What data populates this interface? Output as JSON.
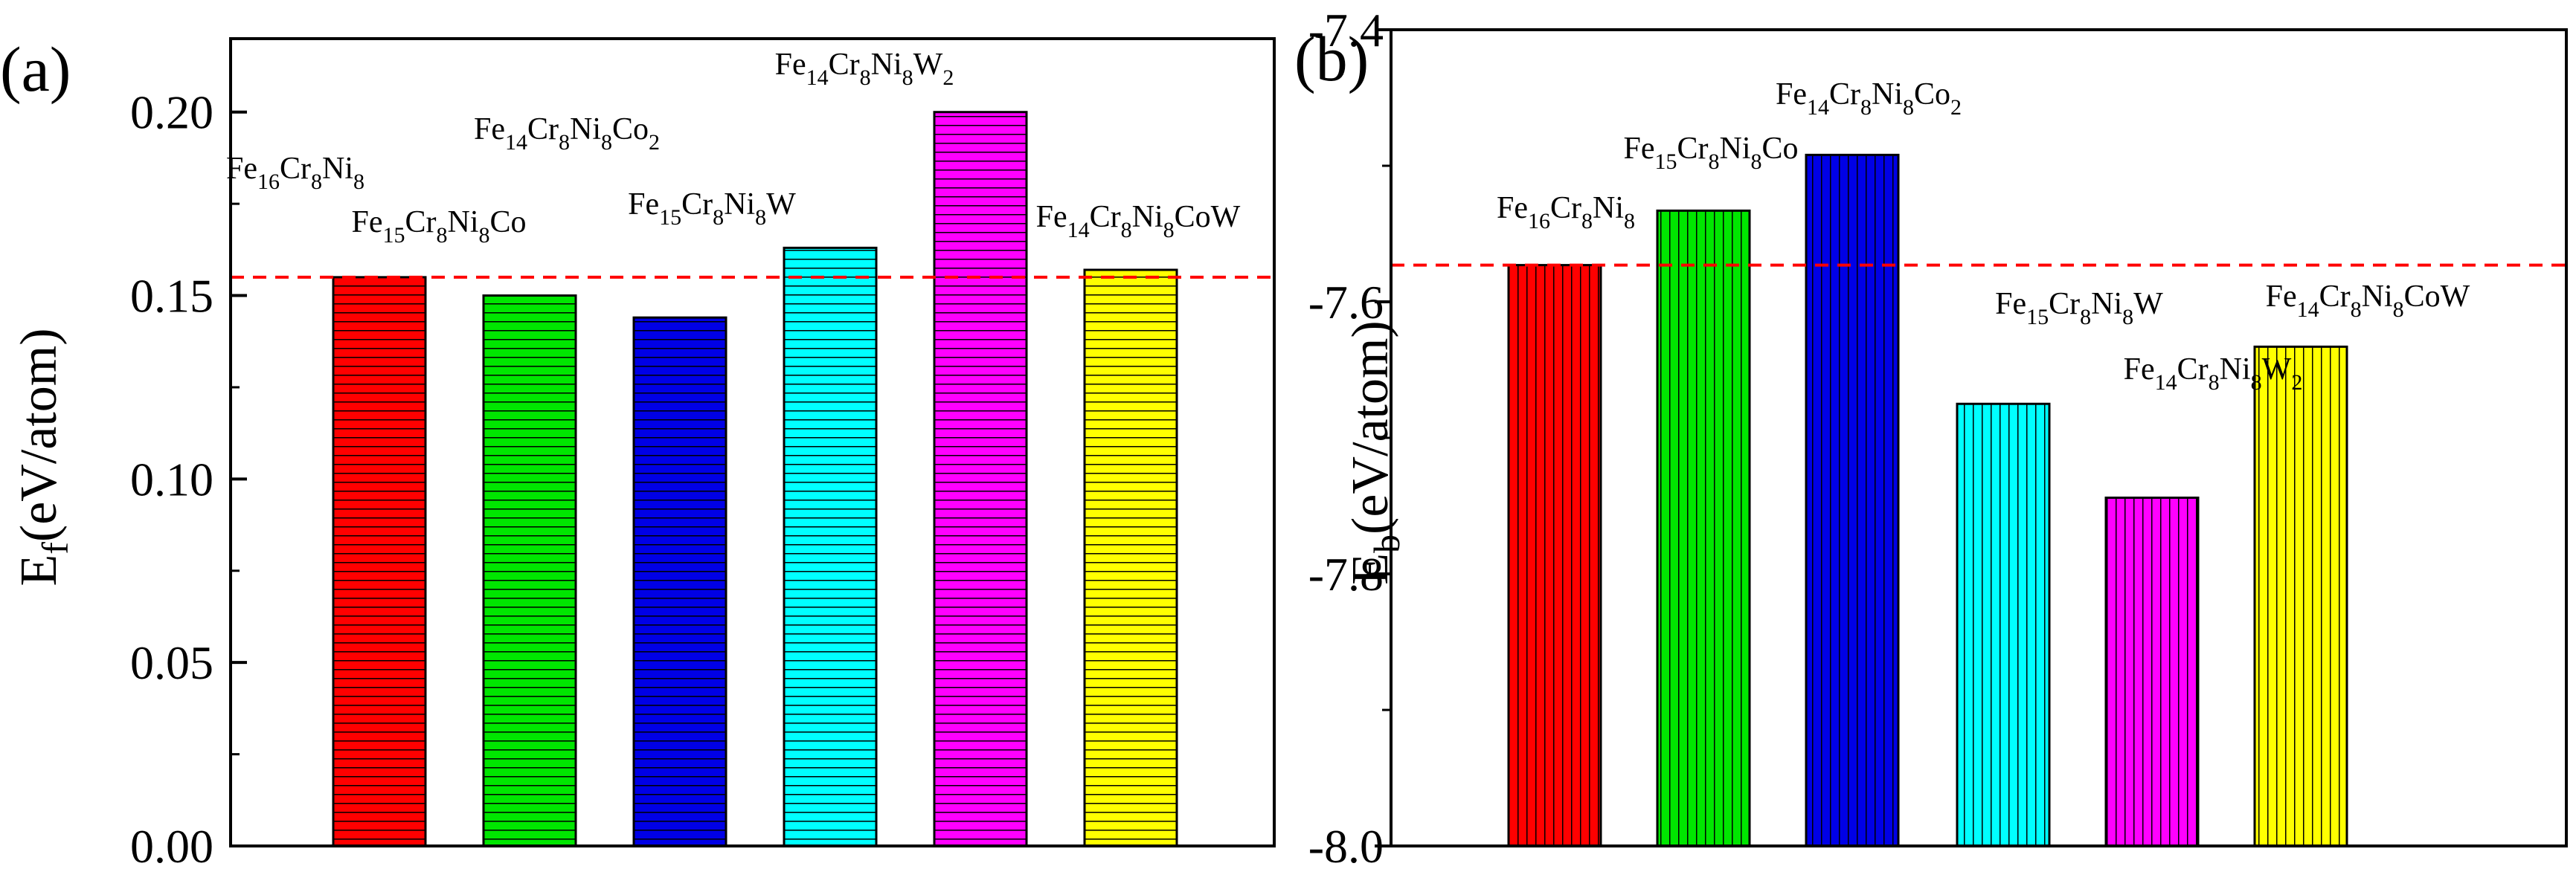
{
  "chart_data": [
    {
      "type": "bar",
      "panel_label": "(a)",
      "ylabel": {
        "main": "E",
        "sub": "f",
        "rest": "(eV/atom)"
      },
      "ylim": [
        0.0,
        0.22
      ],
      "yticks": [
        0.0,
        0.05,
        0.1,
        0.15,
        0.2
      ],
      "ytick_labels": [
        "0.00",
        "0.05",
        "0.10",
        "0.15",
        "0.20"
      ],
      "categories": [
        "Fe16Cr8Ni8",
        "Fe15Cr8Ni8Co",
        "Fe14Cr8Ni8Co2",
        "Fe15Cr8Ni8W",
        "Fe14Cr8Ni8W2",
        "Fe14Cr8Ni8CoW"
      ],
      "label_parts": [
        [
          [
            "Fe",
            ""
          ],
          [
            "16",
            "sub"
          ],
          [
            "Cr",
            ""
          ],
          [
            "8",
            "sub"
          ],
          [
            "Ni",
            ""
          ],
          [
            "8",
            "sub"
          ]
        ],
        [
          [
            "Fe",
            ""
          ],
          [
            "15",
            "sub"
          ],
          [
            "Cr",
            ""
          ],
          [
            "8",
            "sub"
          ],
          [
            "Ni",
            ""
          ],
          [
            "8",
            "sub"
          ],
          [
            "Co",
            ""
          ]
        ],
        [
          [
            "Fe",
            ""
          ],
          [
            "14",
            "sub"
          ],
          [
            "Cr",
            ""
          ],
          [
            "8",
            "sub"
          ],
          [
            "Ni",
            ""
          ],
          [
            "8",
            "sub"
          ],
          [
            "Co",
            ""
          ],
          [
            "2",
            "sub"
          ]
        ],
        [
          [
            "Fe",
            ""
          ],
          [
            "15",
            "sub"
          ],
          [
            "Cr",
            ""
          ],
          [
            "8",
            "sub"
          ],
          [
            "Ni",
            ""
          ],
          [
            "8",
            "sub"
          ],
          [
            "W",
            ""
          ]
        ],
        [
          [
            "Fe",
            ""
          ],
          [
            "14",
            "sub"
          ],
          [
            "Cr",
            ""
          ],
          [
            "8",
            "sub"
          ],
          [
            "Ni",
            ""
          ],
          [
            "8",
            "sub"
          ],
          [
            "W",
            ""
          ],
          [
            "2",
            "sub"
          ]
        ],
        [
          [
            "Fe",
            ""
          ],
          [
            "14",
            "sub"
          ],
          [
            "Cr",
            ""
          ],
          [
            "8",
            "sub"
          ],
          [
            "Ni",
            ""
          ],
          [
            "8",
            "sub"
          ],
          [
            "Co",
            ""
          ],
          [
            "W",
            ""
          ]
        ]
      ],
      "values": [
        0.155,
        0.15,
        0.144,
        0.163,
        0.2,
        0.157
      ],
      "colors": [
        "#ff0000",
        "#00e600",
        "#0000e6",
        "#00ffff",
        "#ff00ff",
        "#ffff00"
      ],
      "hatch": "horizontal",
      "reference_line": 0.155,
      "reference_line_color": "#ff0000",
      "reference_line_style": "dashed"
    },
    {
      "type": "bar",
      "panel_label": "(b)",
      "ylabel": {
        "main": "E",
        "sub": "b",
        "rest": "(eV/atom)"
      },
      "ylim": [
        -8.0,
        -7.4
      ],
      "yticks": [
        -8.0,
        -7.8,
        -7.6,
        -7.4
      ],
      "ytick_labels": [
        "-8.0",
        "-7.8",
        "-7.6",
        "-7.4"
      ],
      "categories": [
        "Fe16Cr8Ni8",
        "Fe15Cr8Ni8Co",
        "Fe14Cr8Ni8Co2",
        "Fe15Cr8Ni8W",
        "Fe14Cr8Ni8W2",
        "Fe14Cr8Ni8CoW"
      ],
      "label_parts": [
        [
          [
            "Fe",
            ""
          ],
          [
            "16",
            "sub"
          ],
          [
            "Cr",
            ""
          ],
          [
            "8",
            "sub"
          ],
          [
            "Ni",
            ""
          ],
          [
            "8",
            "sub"
          ]
        ],
        [
          [
            "Fe",
            ""
          ],
          [
            "15",
            "sub"
          ],
          [
            "Cr",
            ""
          ],
          [
            "8",
            "sub"
          ],
          [
            "Ni",
            ""
          ],
          [
            "8",
            "sub"
          ],
          [
            "Co",
            ""
          ]
        ],
        [
          [
            "Fe",
            ""
          ],
          [
            "14",
            "sub"
          ],
          [
            "Cr",
            ""
          ],
          [
            "8",
            "sub"
          ],
          [
            "Ni",
            ""
          ],
          [
            "8",
            "sub"
          ],
          [
            "Co",
            ""
          ],
          [
            "2",
            "sub"
          ]
        ],
        [
          [
            "Fe",
            ""
          ],
          [
            "15",
            "sub"
          ],
          [
            "Cr",
            ""
          ],
          [
            "8",
            "sub"
          ],
          [
            "Ni",
            ""
          ],
          [
            "8",
            "sub"
          ],
          [
            "W",
            ""
          ]
        ],
        [
          [
            "Fe",
            ""
          ],
          [
            "14",
            "sub"
          ],
          [
            "Cr",
            ""
          ],
          [
            "8",
            "sub"
          ],
          [
            "Ni",
            ""
          ],
          [
            "8",
            "sub"
          ],
          [
            "W",
            ""
          ],
          [
            "2",
            "sub"
          ]
        ],
        [
          [
            "Fe",
            ""
          ],
          [
            "14",
            "sub"
          ],
          [
            "Cr",
            ""
          ],
          [
            "8",
            "sub"
          ],
          [
            "Ni",
            ""
          ],
          [
            "8",
            "sub"
          ],
          [
            "Co",
            ""
          ],
          [
            "W",
            ""
          ]
        ]
      ],
      "values": [
        -7.573,
        -7.533,
        -7.492,
        -7.675,
        -7.744,
        -7.633
      ],
      "colors": [
        "#ff0000",
        "#00e600",
        "#0000e6",
        "#00ffff",
        "#ff00ff",
        "#ffff00"
      ],
      "hatch": "vertical",
      "reference_line": -7.573,
      "reference_line_color": "#ff0000",
      "reference_line_style": "dashed"
    }
  ]
}
